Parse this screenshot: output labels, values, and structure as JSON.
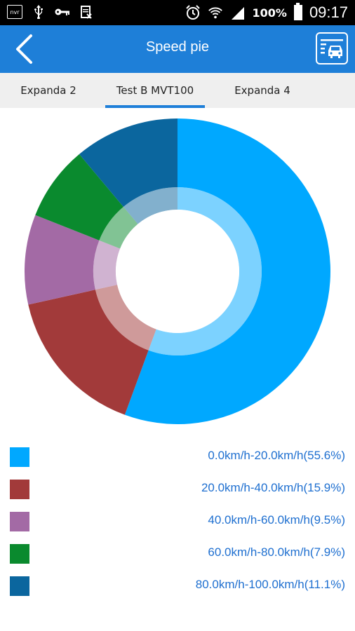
{
  "status_bar": {
    "battery": "100%",
    "time": "09:17",
    "left_icons": [
      "nvr-icon",
      "usb-icon",
      "key-icon",
      "clipboard-icon"
    ]
  },
  "app_bar": {
    "title": "Speed pie",
    "background": "#1e7fd8"
  },
  "tabs": {
    "items": [
      {
        "label": "Expanda 2"
      },
      {
        "label": "Test B MVT100"
      },
      {
        "label": "Expanda 4"
      }
    ],
    "active_index": 1
  },
  "chart_data": {
    "type": "pie",
    "style": "donut",
    "title": "",
    "categories": [
      "0.0km/h-20.0km/h",
      "20.0km/h-40.0km/h",
      "40.0km/h-60.0km/h",
      "60.0km/h-80.0km/h",
      "80.0km/h-100.0km/h"
    ],
    "values": [
      55.6,
      15.9,
      9.5,
      7.9,
      11.1
    ],
    "colors": [
      "#00a8ff",
      "#a23a3a",
      "#a36aa5",
      "#0a8a2e",
      "#0b669e"
    ],
    "legend_labels": [
      "0.0km/h-20.0km/h(55.6%)",
      "20.0km/h-40.0km/h(15.9%)",
      "40.0km/h-60.0km/h(9.5%)",
      "60.0km/h-80.0km/h(7.9%)",
      "80.0km/h-100.0km/h(11.1%)"
    ],
    "legend_placement": "bottom"
  }
}
